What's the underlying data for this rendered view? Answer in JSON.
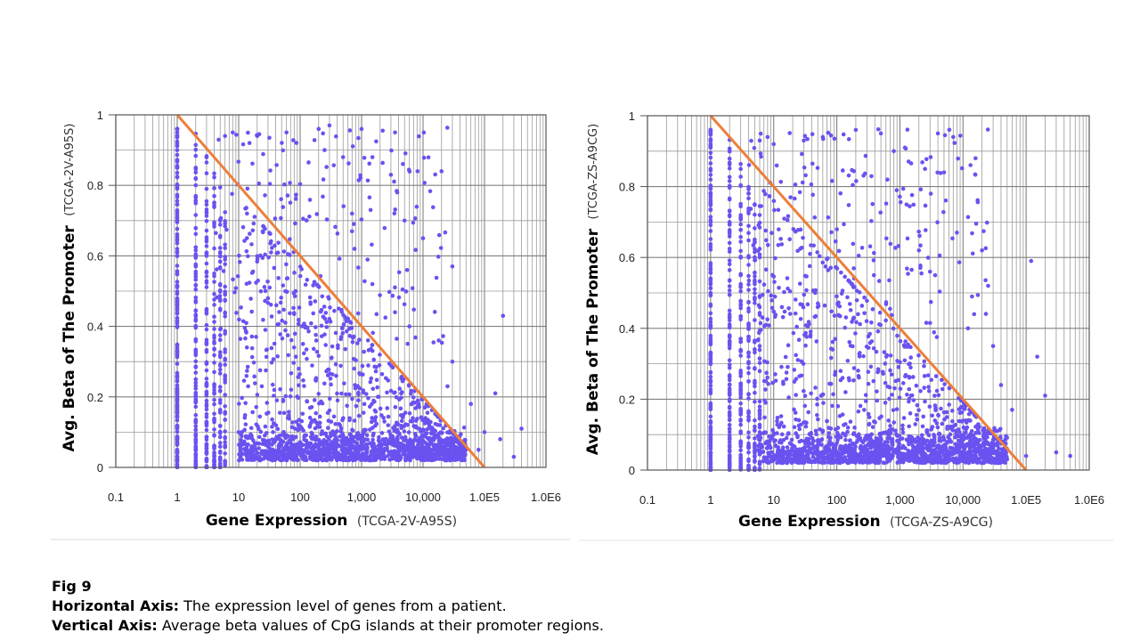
{
  "colors": {
    "point": "#6a52f0",
    "line": "#ec7f3a",
    "grid_major": "#808080",
    "grid_minor": "#9a9a9a",
    "separator": "#ececec"
  },
  "caption": {
    "title": "Fig 9",
    "h_label": "Horizontal Axis:",
    "h_text": " The expression level of genes from a patient.",
    "v_label": "Vertical Axis:",
    "v_text": " Average beta values of CpG islands at their promoter regions."
  },
  "chart_data": [
    {
      "type": "scatter",
      "title": "",
      "xscale": "log",
      "xlim": [
        0.1,
        1000000
      ],
      "ylim": [
        0,
        1
      ],
      "xticks": [
        0.1,
        1,
        10,
        100,
        1000,
        10000,
        100000,
        1000000
      ],
      "xtick_labels": [
        "0.1",
        "1",
        "10",
        "100",
        "1,000",
        "10,000",
        "1.0E5",
        "1.0E6"
      ],
      "yticks": [
        0,
        0.2,
        0.4,
        0.6,
        0.8,
        1
      ],
      "ytick_labels": [
        "0",
        "0.2",
        "0.4",
        "0.6",
        "0.8",
        "1"
      ],
      "xlabel": "Gene Expression",
      "xlabel_sample": "(TCGA-2V-A95S)",
      "ylabel": "Avg. Beta of The Promoter",
      "ylabel_sample": "(TCGA-2V-A95S)",
      "grid": true,
      "reference_line": {
        "from": [
          1,
          1
        ],
        "to": [
          100000,
          0
        ]
      },
      "series": [
        {
          "name": "genes",
          "cloud_description": "approx. 5000 genes, dense at low beta (< 0.15) across 10 to 50,000 expression; vertical streaks at integer expression 1 to 6",
          "points": [
            [
              1,
              0.95
            ],
            [
              1,
              0.9
            ],
            [
              1,
              0.6
            ],
            [
              1,
              0.55
            ],
            [
              1,
              0.4
            ],
            [
              1,
              0.2
            ],
            [
              1,
              0.05
            ],
            [
              2,
              0.85
            ],
            [
              2,
              0.6
            ],
            [
              2,
              0.4
            ],
            [
              2,
              0.25
            ],
            [
              3,
              0.79
            ],
            [
              3,
              0.6
            ],
            [
              3,
              0.35
            ],
            [
              4,
              0.75
            ],
            [
              4,
              0.55
            ],
            [
              5,
              0.7
            ],
            [
              5,
              0.45
            ],
            [
              6,
              0.94
            ],
            [
              8,
              0.95
            ],
            [
              15,
              0.92
            ],
            [
              20,
              0.94
            ],
            [
              60,
              0.95
            ],
            [
              200,
              0.96
            ],
            [
              300,
              0.97
            ],
            [
              1000,
              0.96
            ],
            [
              3500,
              0.95
            ],
            [
              250,
              0.9
            ],
            [
              500,
              0.88
            ],
            [
              1500,
              0.88
            ],
            [
              3000,
              0.83
            ],
            [
              20000,
              0.84
            ],
            [
              700,
              0.72
            ],
            [
              1400,
              0.73
            ],
            [
              5000,
              0.7
            ],
            [
              3800,
              0.78
            ],
            [
              30000,
              0.57
            ],
            [
              10000,
              0.65
            ],
            [
              5500,
              0.56
            ],
            [
              1500,
              0.52
            ],
            [
              3500,
              0.44
            ],
            [
              6000,
              0.4
            ],
            [
              18000,
              0.36
            ],
            [
              200000,
              0.43
            ],
            [
              30000,
              0.3
            ],
            [
              25000,
              0.23
            ],
            [
              60000,
              0.18
            ],
            [
              150000,
              0.21
            ],
            [
              400000,
              0.11
            ],
            [
              100000,
              0.1
            ],
            [
              180000,
              0.08
            ],
            [
              300000,
              0.03
            ],
            [
              80000,
              0.05
            ],
            [
              10000,
              0.05
            ],
            [
              1000,
              0.03
            ],
            [
              100,
              0.05
            ],
            [
              10,
              0.1
            ]
          ]
        }
      ]
    },
    {
      "type": "scatter",
      "title": "",
      "xscale": "log",
      "xlim": [
        0.1,
        1000000
      ],
      "ylim": [
        0,
        1
      ],
      "xticks": [
        0.1,
        1,
        10,
        100,
        1000,
        10000,
        100000,
        1000000
      ],
      "xtick_labels": [
        "0.1",
        "1",
        "10",
        "100",
        "1,000",
        "10,000",
        "1.0E5",
        "1.0E6"
      ],
      "yticks": [
        0,
        0.2,
        0.4,
        0.6,
        0.8,
        1
      ],
      "ytick_labels": [
        "0",
        "0.2",
        "0.4",
        "0.6",
        "0.8",
        "1"
      ],
      "xlabel": "Gene Expression",
      "xlabel_sample": "(TCGA-ZS-A9CG)",
      "ylabel": "Avg. Beta of The Promoter",
      "ylabel_sample": "(TCGA-ZS-A9CG)",
      "grid": true,
      "reference_line": {
        "from": [
          1,
          1
        ],
        "to": [
          100000,
          0
        ]
      },
      "series": [
        {
          "name": "genes",
          "cloud_description": "approx. 5000 genes, dense at low beta (< 0.15) across 5 to 50,000 expression; vertical streaks at integer expression 1 to 6",
          "points": [
            [
              1,
              0.92
            ],
            [
              1,
              0.82
            ],
            [
              1,
              0.7
            ],
            [
              1,
              0.5
            ],
            [
              1,
              0.3
            ],
            [
              1,
              0.05
            ],
            [
              2,
              0.9
            ],
            [
              2,
              0.7
            ],
            [
              2,
              0.45
            ],
            [
              2,
              0.2
            ],
            [
              3,
              0.85
            ],
            [
              3,
              0.55
            ],
            [
              4,
              0.78
            ],
            [
              4,
              0.6
            ],
            [
              5,
              0.75
            ],
            [
              6,
              0.93
            ],
            [
              8,
              0.94
            ],
            [
              10,
              0.92
            ],
            [
              30,
              0.93
            ],
            [
              60,
              0.94
            ],
            [
              200,
              0.96
            ],
            [
              500,
              0.95
            ],
            [
              1200,
              0.91
            ],
            [
              4000,
              0.95
            ],
            [
              7000,
              0.94
            ],
            [
              800,
              0.9
            ],
            [
              2500,
              0.85
            ],
            [
              5000,
              0.84
            ],
            [
              20000,
              0.62
            ],
            [
              8000,
              0.67
            ],
            [
              2000,
              0.62
            ],
            [
              3000,
              0.56
            ],
            [
              25000,
              0.52
            ],
            [
              15000,
              0.44
            ],
            [
              12000,
              0.4
            ],
            [
              30000,
              0.35
            ],
            [
              120000,
              0.59
            ],
            [
              150000,
              0.32
            ],
            [
              200000,
              0.21
            ],
            [
              60000,
              0.17
            ],
            [
              40000,
              0.24
            ],
            [
              300000,
              0.05
            ],
            [
              500000,
              0.04
            ],
            [
              100000,
              0.04
            ],
            [
              10000,
              0.05
            ],
            [
              1000,
              0.04
            ],
            [
              100,
              0.05
            ],
            [
              10,
              0.1
            ]
          ]
        }
      ]
    }
  ]
}
